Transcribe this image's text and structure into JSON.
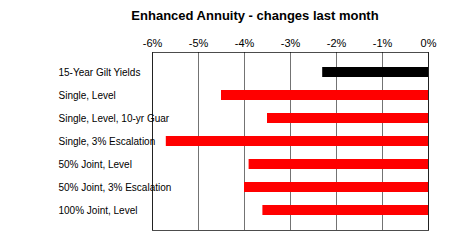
{
  "chart_data": {
    "type": "bar",
    "title": "Enhanced Annuity - changes last month",
    "orientation": "horizontal",
    "categories": [
      "15-Year Gilt Yields",
      "Single, Level",
      "Single, Level, 10-yr Guar",
      "Single, 3% Escalation",
      "50% Joint, Level",
      "50% Joint, 3% Escalation",
      "100% Joint, Level"
    ],
    "values": [
      -2.3,
      -4.5,
      -3.5,
      -5.7,
      -3.9,
      -4.0,
      -3.6
    ],
    "colors": [
      "#000000",
      "#ff0000",
      "#ff0000",
      "#ff0000",
      "#ff0000",
      "#ff0000",
      "#ff0000"
    ],
    "xlim": [
      -6,
      0
    ],
    "xticks": [
      {
        "value": -6,
        "label": "-6%"
      },
      {
        "value": -5,
        "label": "-5%"
      },
      {
        "value": -4,
        "label": "-4%"
      },
      {
        "value": -3,
        "label": "-3%"
      },
      {
        "value": -2,
        "label": "-2%"
      },
      {
        "value": -1,
        "label": "-1%"
      },
      {
        "value": 0,
        "label": "0%"
      }
    ],
    "grid": true
  }
}
